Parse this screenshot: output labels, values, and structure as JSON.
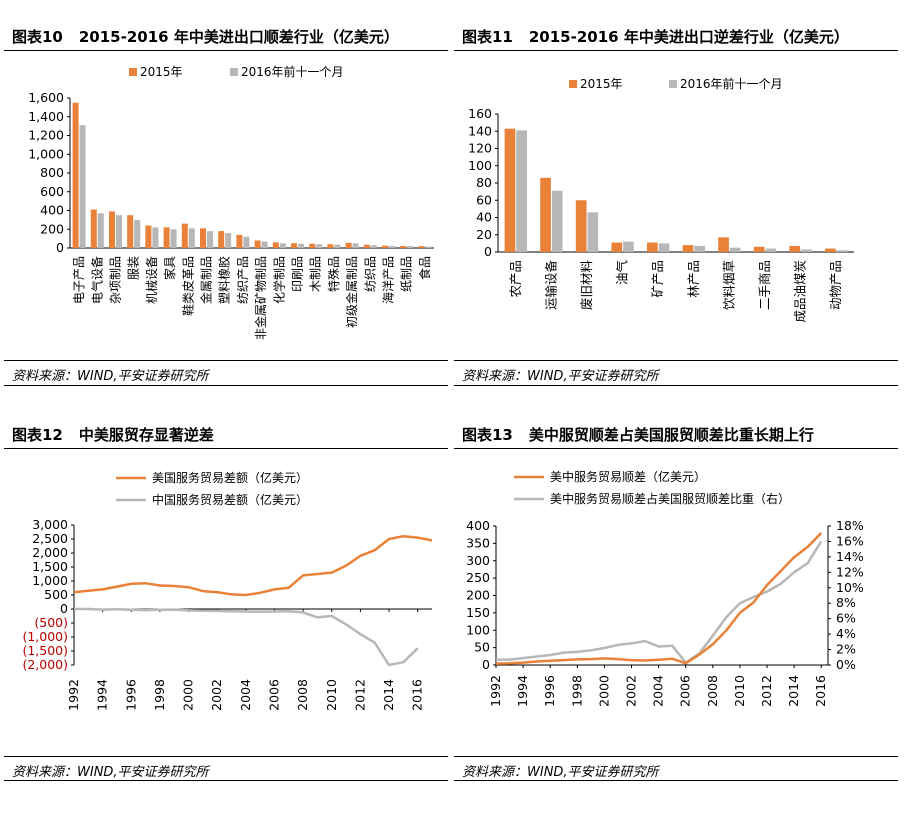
{
  "colors": {
    "orange": "#E98138",
    "gray": "#B7B7B7",
    "neg": "#C00000"
  },
  "panels": [
    {
      "num": "图表10",
      "title": "2015-2016 年中美进出口顺差行业（亿美元）",
      "source": "资料来源：WIND,平安证券研究所"
    },
    {
      "num": "图表11",
      "title": "2015-2016 年中美进出口逆差行业（亿美元）",
      "source": "资料来源：WIND,平安证券研究所"
    },
    {
      "num": "图表12",
      "title": "中美服贸存显著逆差",
      "source": "资料来源：WIND,平安证券研究所"
    },
    {
      "num": "图表13",
      "title": "美中服贸顺差占美国服贸顺差比重长期上行",
      "source": "资料来源：WIND,平安证券研究所"
    }
  ],
  "chart_data": [
    {
      "type": "bar",
      "categories": [
        "电子产品",
        "电气设备",
        "杂项制品",
        "服装",
        "机械设备",
        "家具",
        "鞋类皮革品",
        "金属制品",
        "塑料橡胶",
        "纺织产品",
        "非金属矿物制品",
        "化学制品",
        "印刷品",
        "木制品",
        "特殊品",
        "初级金属制品",
        "纺织品",
        "海洋产品",
        "纸制品",
        "食品"
      ],
      "series": [
        {
          "name": "2015年",
          "values": [
            1550,
            410,
            390,
            350,
            240,
            220,
            260,
            210,
            180,
            140,
            80,
            60,
            50,
            45,
            40,
            55,
            35,
            25,
            22,
            20
          ]
        },
        {
          "name": "2016年前十一个月",
          "values": [
            1310,
            370,
            350,
            300,
            220,
            200,
            210,
            180,
            160,
            120,
            70,
            50,
            45,
            40,
            35,
            50,
            30,
            22,
            20,
            15
          ]
        }
      ],
      "yticks": [
        "0",
        "200",
        "400",
        "600",
        "800",
        "1,000",
        "1,200",
        "1,400",
        "1,600"
      ],
      "ylim": [
        0,
        1600
      ],
      "legend": "top"
    },
    {
      "type": "bar",
      "categories": [
        "农产品",
        "运输设备",
        "废旧材料",
        "油气",
        "矿产品",
        "林产品",
        "饮料烟草",
        "二手商品",
        "成品油煤炭",
        "动物产品"
      ],
      "series": [
        {
          "name": "2015年",
          "values": [
            143,
            86,
            60,
            11,
            11,
            8,
            17,
            6,
            7,
            4
          ]
        },
        {
          "name": "2016年前十一个月",
          "values": [
            141,
            71,
            46,
            12,
            10,
            7,
            5,
            4,
            3,
            2
          ]
        }
      ],
      "yticks": [
        "0",
        "20",
        "40",
        "60",
        "80",
        "100",
        "120",
        "140",
        "160"
      ],
      "ylim": [
        0,
        160
      ],
      "legend": "top"
    },
    {
      "type": "line",
      "x": [
        1992,
        1993,
        1994,
        1995,
        1996,
        1997,
        1998,
        1999,
        2000,
        2001,
        2002,
        2003,
        2004,
        2005,
        2006,
        2007,
        2008,
        2009,
        2010,
        2011,
        2012,
        2013,
        2014,
        2015,
        2016,
        2017
      ],
      "series": [
        {
          "name": "美国服务贸易差额（亿美元）",
          "values": [
            600,
            650,
            700,
            800,
            900,
            920,
            840,
            820,
            780,
            640,
            600,
            520,
            500,
            580,
            700,
            760,
            1200,
            1250,
            1300,
            1550,
            1900,
            2100,
            2500,
            2600,
            2550,
            2450
          ]
        },
        {
          "name": "中国服务贸易差额（亿美元）",
          "values": [
            0,
            0,
            -20,
            -10,
            -30,
            -40,
            -30,
            -20,
            -50,
            -60,
            -70,
            -80,
            -90,
            -100,
            -90,
            -80,
            -120,
            -300,
            -250,
            -550,
            -900,
            -1200,
            -2000,
            -1900,
            -1400,
            null
          ]
        }
      ],
      "yticks": [
        "3,000",
        "2,500",
        "2,000",
        "1,500",
        "1,000",
        "500",
        "0",
        "(500)",
        "(1,000)",
        "(1,500)",
        "(2,000)"
      ],
      "xticks": [
        "1992",
        "1994",
        "1996",
        "1998",
        "2000",
        "2002",
        "2004",
        "2006",
        "2008",
        "2010",
        "2012",
        "2014",
        "2016"
      ],
      "ylim": [
        -2000,
        3000
      ],
      "legend": "top-left"
    },
    {
      "type": "line",
      "x": [
        1992,
        1993,
        1994,
        1995,
        1996,
        1997,
        1998,
        1999,
        2000,
        2001,
        2002,
        2003,
        2004,
        2005,
        2006,
        2007,
        2008,
        2009,
        2010,
        2011,
        2012,
        2013,
        2014,
        2015,
        2016
      ],
      "series": [
        {
          "name": "美中服务贸易顺差（亿美元）",
          "axis": "left",
          "values": [
            4,
            5,
            7,
            10,
            12,
            14,
            16,
            17,
            19,
            17,
            14,
            13,
            15,
            18,
            5,
            30,
            60,
            100,
            150,
            180,
            230,
            270,
            310,
            340,
            380
          ]
        },
        {
          "name": "美中服务贸易顺差占美国服贸顺差比重（右）",
          "axis": "right",
          "values": [
            0.7,
            0.7,
            0.9,
            1.1,
            1.3,
            1.6,
            1.7,
            1.9,
            2.2,
            2.6,
            2.8,
            3.1,
            2.4,
            2.5,
            0.3,
            1.5,
            3.8,
            6.2,
            8.0,
            8.8,
            9.5,
            10.5,
            12,
            13.2,
            16
          ]
        }
      ],
      "yticks_left": [
        "400",
        "350",
        "300",
        "250",
        "200",
        "150",
        "100",
        "50",
        "0"
      ],
      "yticks_right": [
        "18%",
        "16%",
        "14%",
        "12%",
        "10%",
        "8%",
        "6%",
        "4%",
        "2%",
        "0%"
      ],
      "xticks": [
        "1992",
        "1994",
        "1996",
        "1998",
        "2000",
        "2002",
        "2004",
        "2006",
        "2008",
        "2010",
        "2012",
        "2014",
        "2016"
      ],
      "ylim_left": [
        0,
        400
      ],
      "ylim_right": [
        0,
        18
      ],
      "legend": "top-left"
    }
  ]
}
